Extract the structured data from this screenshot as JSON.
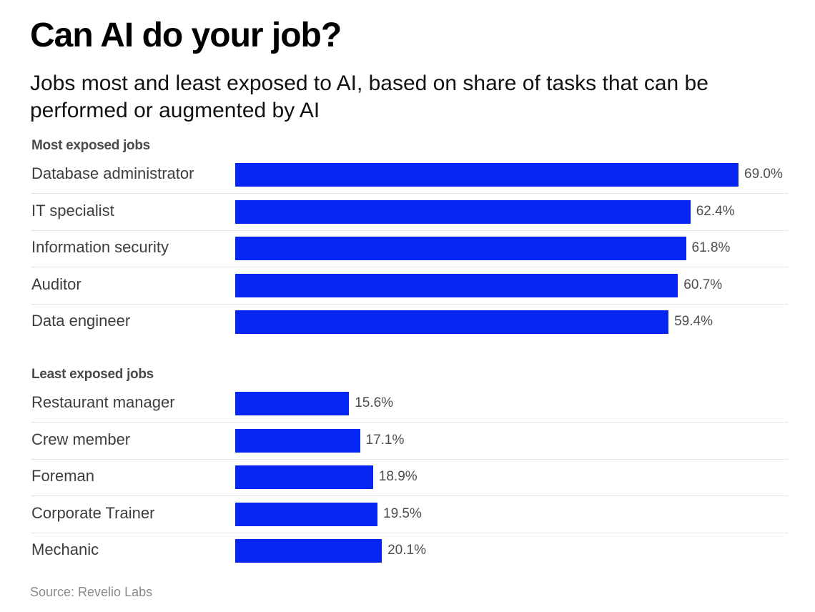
{
  "chart_data": {
    "type": "bar",
    "orientation": "horizontal",
    "title": "Can AI do your job?",
    "subtitle": "Jobs most and least exposed to AI, based on share of tasks that can be performed or augmented by AI",
    "xlabel": "",
    "ylabel": "",
    "xlim": [
      0,
      70
    ],
    "unit": "%",
    "grid": false,
    "bar_color": "#0626f4",
    "groups": [
      {
        "name": "Most exposed jobs",
        "categories": [
          "Database administrator",
          "IT specialist",
          "Information security",
          "Auditor",
          "Data engineer"
        ],
        "values": [
          69.0,
          62.4,
          61.8,
          60.7,
          59.4
        ],
        "labels": [
          "69.0%",
          "62.4%",
          "61.8%",
          "60.7%",
          "59.4%"
        ]
      },
      {
        "name": "Least exposed jobs",
        "categories": [
          "Restaurant manager",
          "Crew member",
          "Foreman",
          "Corporate Trainer",
          "Mechanic"
        ],
        "values": [
          15.6,
          17.1,
          18.9,
          19.5,
          20.1
        ],
        "labels": [
          "15.6%",
          "17.1%",
          "18.9%",
          "19.5%",
          "20.1%"
        ]
      }
    ],
    "source": "Source: Revelio Labs"
  }
}
